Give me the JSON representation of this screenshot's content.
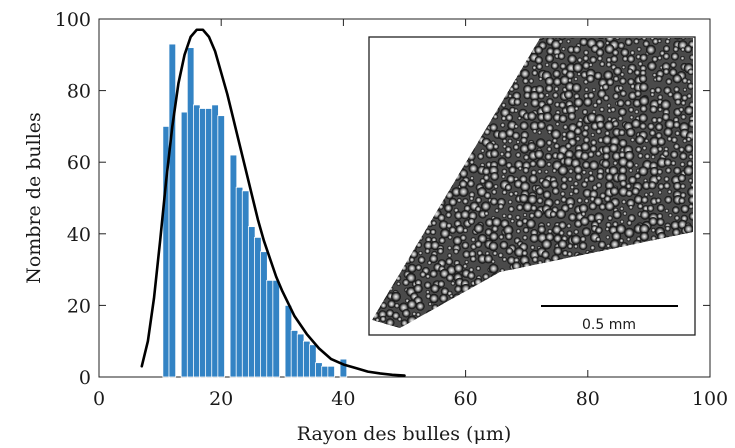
{
  "chart_data": {
    "type": "bar",
    "xlabel": "Rayon des bulles (μm)",
    "ylabel": "Nombre de bulles",
    "xlim": [
      0,
      100
    ],
    "ylim": [
      0,
      100
    ],
    "xticks": [
      0,
      20,
      40,
      60,
      80,
      100
    ],
    "yticks": [
      0,
      20,
      40,
      60,
      80,
      100
    ],
    "bin_width": 1.1,
    "bar_color": "#3383c4",
    "curve_color": "#000000",
    "bars": [
      {
        "x": 11,
        "value": 70
      },
      {
        "x": 12,
        "value": 93
      },
      {
        "x": 14,
        "value": 74
      },
      {
        "x": 15,
        "value": 92
      },
      {
        "x": 16,
        "value": 76
      },
      {
        "x": 17,
        "value": 75
      },
      {
        "x": 18,
        "value": 75
      },
      {
        "x": 19,
        "value": 76
      },
      {
        "x": 20,
        "value": 73
      },
      {
        "x": 22,
        "value": 62
      },
      {
        "x": 23,
        "value": 53
      },
      {
        "x": 24,
        "value": 52
      },
      {
        "x": 25,
        "value": 42
      },
      {
        "x": 26,
        "value": 39
      },
      {
        "x": 27,
        "value": 35
      },
      {
        "x": 28,
        "value": 27
      },
      {
        "x": 29,
        "value": 27
      },
      {
        "x": 31,
        "value": 20
      },
      {
        "x": 32,
        "value": 13
      },
      {
        "x": 33,
        "value": 12
      },
      {
        "x": 34,
        "value": 10
      },
      {
        "x": 35,
        "value": 9
      },
      {
        "x": 36,
        "value": 4
      },
      {
        "x": 37,
        "value": 3
      },
      {
        "x": 38,
        "value": 3
      },
      {
        "x": 40,
        "value": 5
      }
    ],
    "fit_curve": {
      "x": [
        7,
        8,
        9,
        10,
        11,
        12,
        13,
        14,
        15,
        16,
        17,
        18,
        19,
        20,
        21,
        22,
        23,
        24,
        25,
        26,
        27,
        28,
        29,
        30,
        32,
        34,
        36,
        38,
        40,
        42,
        44,
        46,
        48,
        50
      ],
      "y": [
        3,
        10,
        22,
        38,
        55,
        70,
        82,
        90,
        95,
        97,
        97,
        95,
        91,
        85,
        79,
        72,
        65,
        58,
        51,
        44,
        38,
        33,
        28,
        24,
        17,
        12,
        8,
        5,
        3.5,
        2.5,
        1.5,
        1,
        0.6,
        0.4
      ]
    },
    "inset": {
      "scale_bar_label": "0.5 mm"
    }
  }
}
